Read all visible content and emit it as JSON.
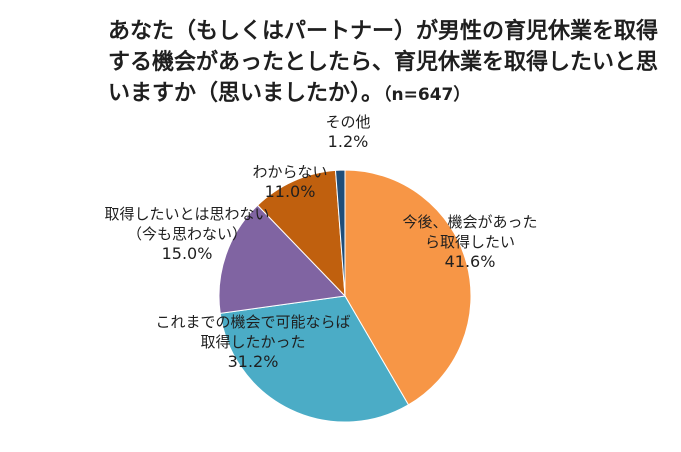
{
  "chart_data": {
    "type": "pie",
    "title": "あなた（もしくはパートナー）が男性の育児休業を取得する機会があったとしたら、育児休業を取得したいと思いますか（思いましたか）。",
    "n_label": "（n=647）",
    "slices": [
      {
        "label_lines": [
          "今後、機会があった",
          "ら取得したい"
        ],
        "value": 41.6,
        "value_label": "41.6%",
        "color": "#F79646"
      },
      {
        "label_lines": [
          "これまでの機会で可能ならば",
          "取得したかった"
        ],
        "value": 31.2,
        "value_label": "31.2%",
        "color": "#4BACC6"
      },
      {
        "label_lines": [
          "取得したいとは思わない",
          "（今も思わない）"
        ],
        "value": 15.0,
        "value_label": "15.0%",
        "color": "#8064A2"
      },
      {
        "label_lines": [
          "わからない"
        ],
        "value": 11.0,
        "value_label": "11.0%",
        "color": "#C0600E"
      },
      {
        "label_lines": [
          "その他"
        ],
        "value": 1.2,
        "value_label": "1.2%",
        "color": "#1F4E79"
      }
    ]
  }
}
